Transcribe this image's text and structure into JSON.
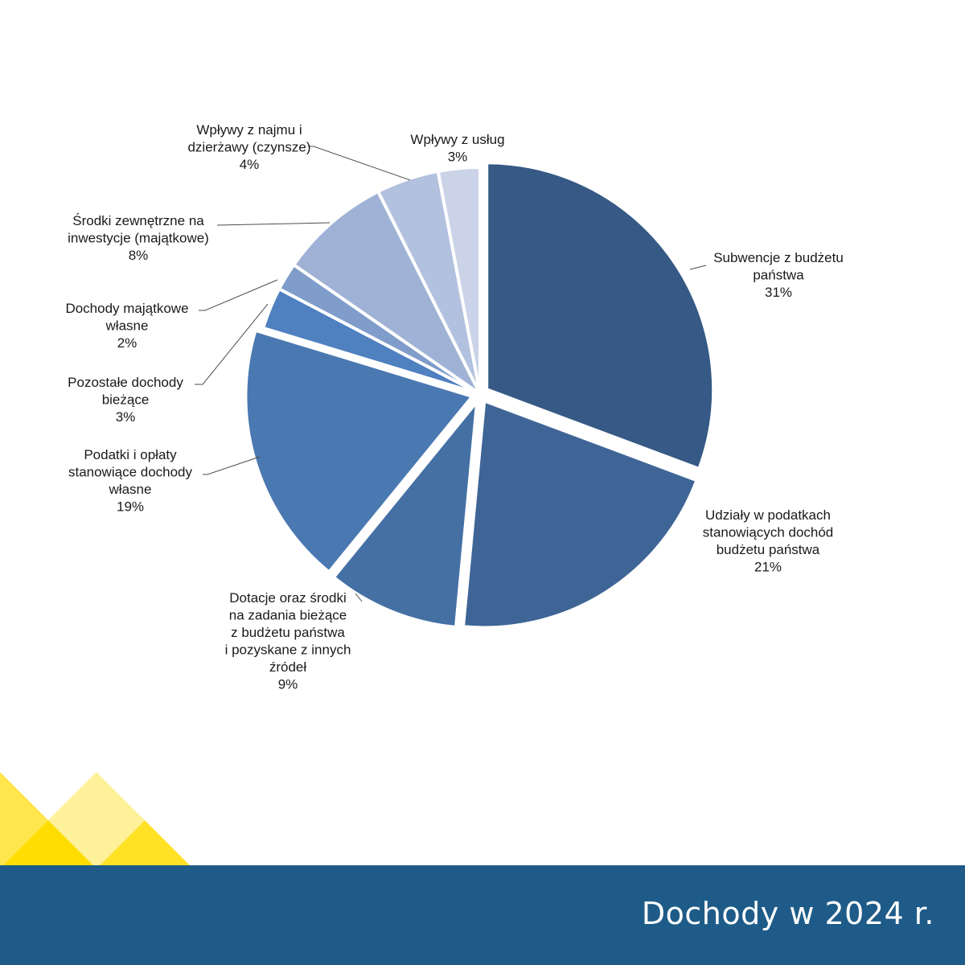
{
  "chart_data": {
    "type": "pie",
    "title": "",
    "start_angle_deg": 0,
    "direction": "clockwise",
    "slices": [
      {
        "label": [
          "Subwencje z budżetu",
          "państwa"
        ],
        "percent_label": "31%",
        "value": 31,
        "color": "#365a85",
        "exploded": true
      },
      {
        "label": [
          "Udziały w podatkach",
          "stanowiących dochód",
          "budżetu państwa"
        ],
        "percent_label": "21%",
        "value": 21,
        "color": "#3f6596",
        "exploded": true
      },
      {
        "label": [
          "Dotacje oraz środki",
          "na zadania bieżące",
          "z budżetu państwa",
          "i pozyskane z innych",
          "źródeł"
        ],
        "percent_label": "9%",
        "value": 9.5,
        "color": "#4470a4",
        "exploded": true
      },
      {
        "label": [
          "Podatki i opłaty",
          "stanowiące dochody",
          "własne"
        ],
        "percent_label": "19%",
        "value": 19,
        "color": "#4a78b1",
        "exploded": true
      },
      {
        "label": [
          "Pozostałe dochody",
          "bieżące"
        ],
        "percent_label": "3%",
        "value": 3,
        "color": "#4f80c0",
        "exploded": false
      },
      {
        "label": [
          "Dochody majątkowe",
          "własne"
        ],
        "percent_label": "2%",
        "value": 2,
        "color": "#7f9cca",
        "exploded": false
      },
      {
        "label": [
          "Środki zewnętrzne na",
          "inwestycje (majątkowe)"
        ],
        "percent_label": "8%",
        "value": 8,
        "color": "#9fb2d6",
        "exploded": false
      },
      {
        "label": [
          "Wpływy z najmu i",
          "dzierżawy (czynsze)"
        ],
        "percent_label": "4%",
        "value": 4.5,
        "color": "#b2c1de",
        "exploded": false
      },
      {
        "label": [
          "Wpływy z usług"
        ],
        "percent_label": "3%",
        "value": 3,
        "color": "#cad3e7",
        "exploded": false
      }
    ]
  },
  "footer": {
    "title": "Dochody w 2024 r.",
    "band_color": "#1e5b88"
  }
}
